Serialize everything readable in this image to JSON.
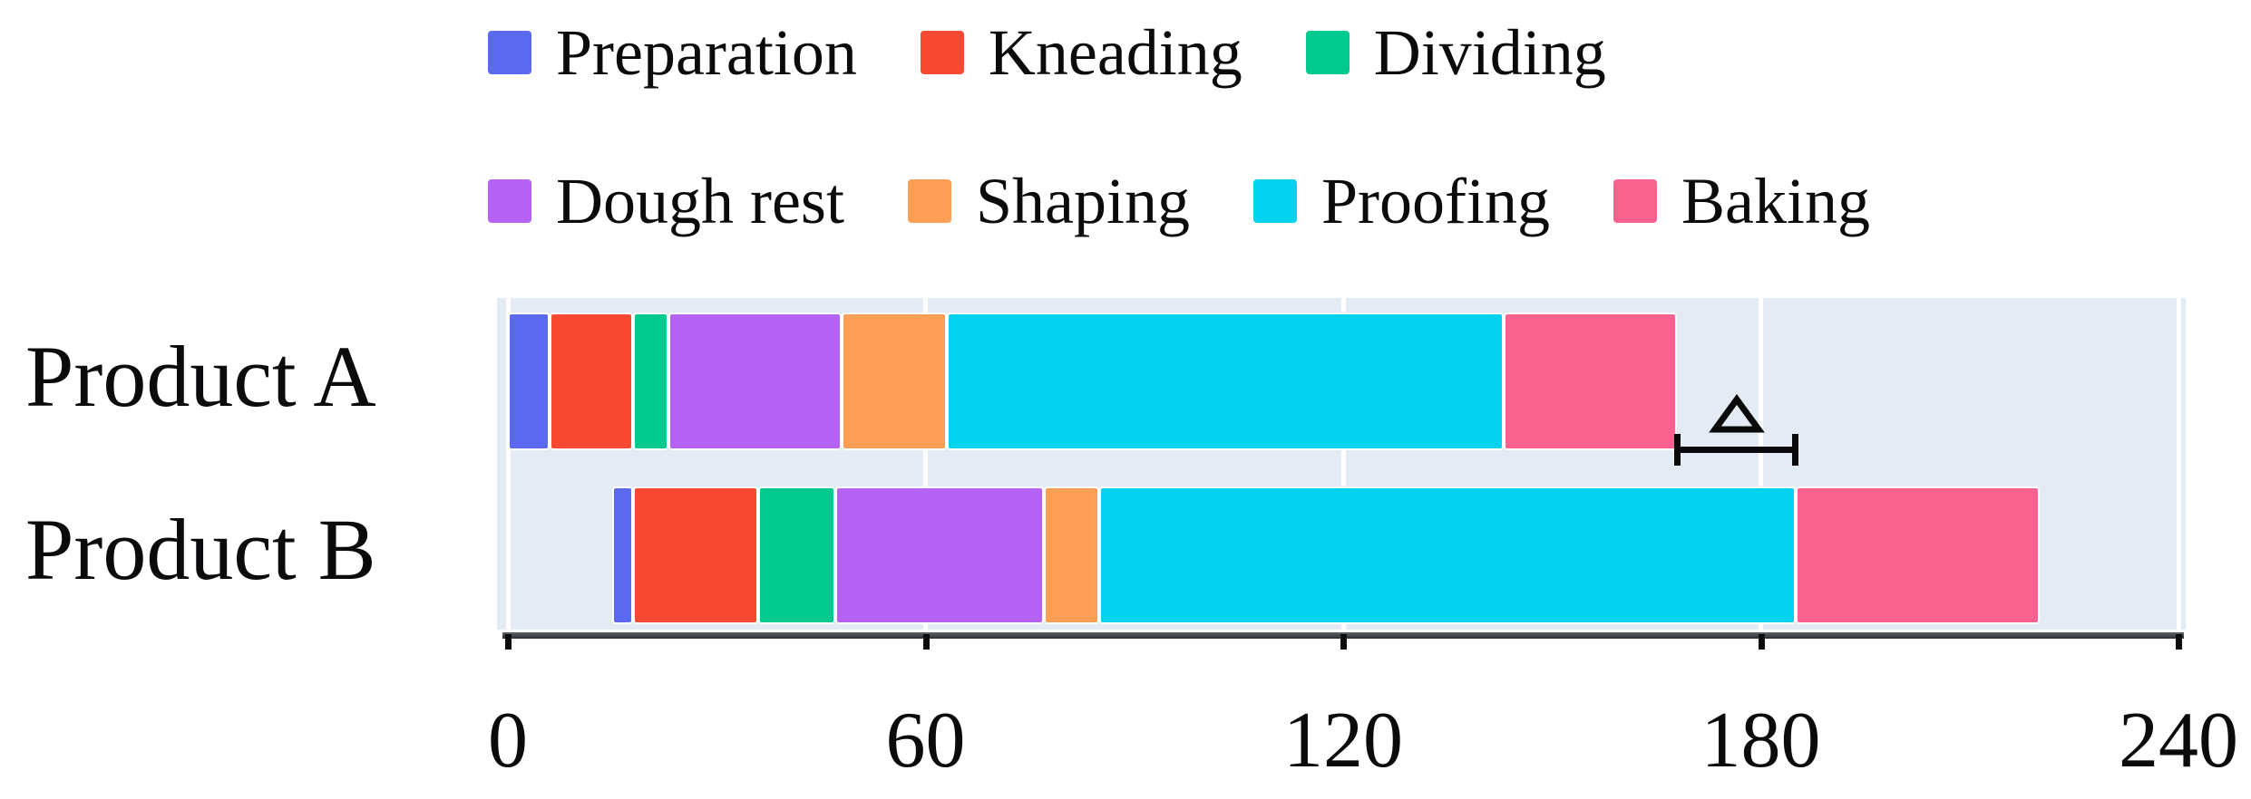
{
  "chart_data": {
    "type": "bar",
    "orientation": "horizontal",
    "stacked": true,
    "title": "",
    "xlabel": "",
    "ylabel": "",
    "categories": [
      "Product A",
      "Product B"
    ],
    "bar_start_offsets": [
      0,
      15
    ],
    "series": [
      {
        "name": "Preparation",
        "color": "#5b69f1",
        "values": [
          6,
          3
        ]
      },
      {
        "name": "Kneading",
        "color": "#f84a32",
        "values": [
          12,
          18
        ]
      },
      {
        "name": "Dividing",
        "color": "#02c98d",
        "values": [
          5,
          11
        ]
      },
      {
        "name": "Dough rest",
        "color": "#b662f5",
        "values": [
          25,
          30
        ]
      },
      {
        "name": "Shaping",
        "color": "#fc9e55",
        "values": [
          15,
          8
        ]
      },
      {
        "name": "Proofing",
        "color": "#05d2ee",
        "values": [
          80,
          100
        ]
      },
      {
        "name": "Baking",
        "color": "#f9618f",
        "values": [
          25,
          35
        ]
      }
    ],
    "bar_end_values": [
      168,
      220
    ],
    "xlim": [
      0,
      240
    ],
    "xticks": [
      0,
      60,
      120,
      180,
      240
    ],
    "xtick_labels": [
      "0",
      "60",
      "120",
      "180",
      "240"
    ],
    "grid": true,
    "legend_position": "top",
    "legend_rows": [
      [
        0,
        1,
        2
      ],
      [
        3,
        4,
        5,
        6
      ]
    ],
    "annotation": {
      "symbol": "Δ",
      "x_from": 168,
      "x_to": 185,
      "location": "right of Product A bar end"
    }
  },
  "style": {
    "plot_bg": "#e4ebf5",
    "gridline_color": "#ffffff",
    "axis_line_color": "#3b3f46",
    "tick_color": "#0c0d0e",
    "text_color": "#0b0b0d",
    "annotation_color": "#0a0a0a",
    "segment_gap_color": "#ffffff"
  }
}
